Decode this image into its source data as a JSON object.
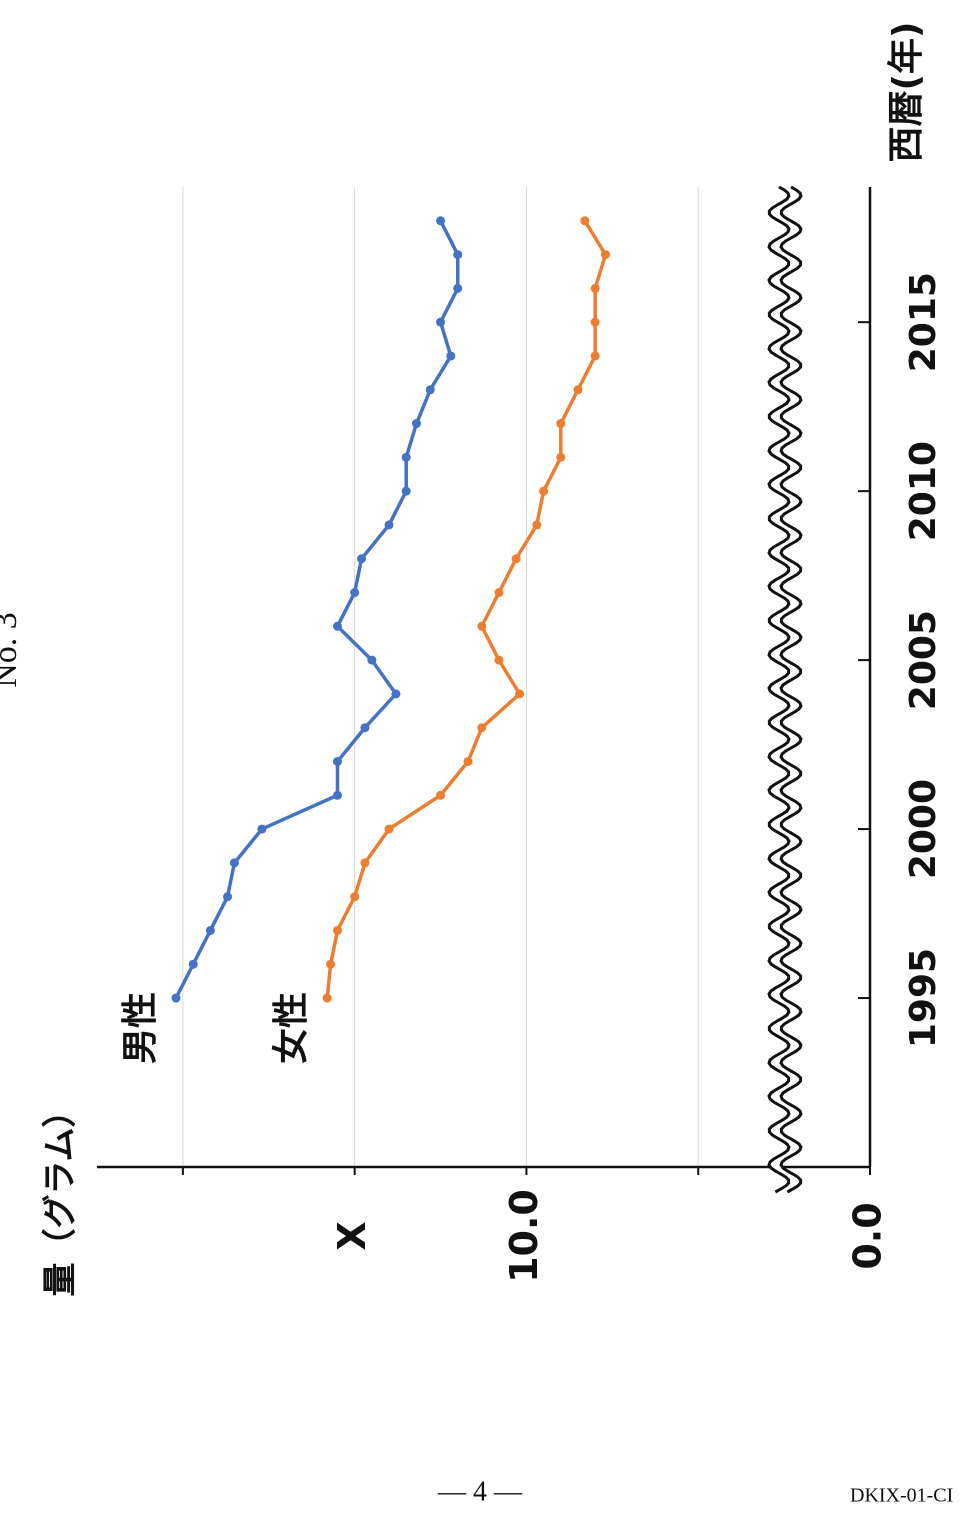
{
  "header": "No. 3",
  "footer": {
    "page_number": "— 4 —",
    "doc_code": "DKIX-01-CI"
  },
  "chart_data": {
    "type": "line",
    "y_label": "量（グラム）",
    "x_label": "西暦(年)",
    "x": [
      1995,
      1996,
      1997,
      1998,
      1999,
      2000,
      2001,
      2002,
      2003,
      2004,
      2005,
      2006,
      2007,
      2008,
      2009,
      2010,
      2011,
      2012,
      2013,
      2014,
      2015,
      2016,
      2017,
      2018
    ],
    "series": [
      {
        "name": "男性",
        "color": "#4472c4",
        "values": [
          20.2,
          19.7,
          19.2,
          18.7,
          18.5,
          17.7,
          15.5,
          15.5,
          14.7,
          13.8,
          14.5,
          15.5,
          15.0,
          14.8,
          14.0,
          13.5,
          13.5,
          13.2,
          12.8,
          12.2,
          12.5,
          12.0,
          12.0,
          12.5
        ]
      },
      {
        "name": "女性",
        "color": "#ed7d31",
        "values": [
          15.8,
          15.7,
          15.5,
          15.0,
          14.7,
          14.0,
          12.5,
          11.7,
          11.3,
          10.2,
          10.8,
          11.3,
          10.8,
          10.3,
          9.7,
          9.5,
          9.0,
          9.0,
          8.5,
          8.0,
          8.0,
          8.0,
          7.7,
          8.3
        ]
      }
    ],
    "xlim": [
      1990,
      2019
    ],
    "xticks": [
      1995,
      2000,
      2005,
      2010,
      2015
    ],
    "ylim": [
      0,
      22.5
    ],
    "yticks": [
      {
        "value": 0,
        "label": "0.0"
      },
      {
        "value": 10,
        "label": "10.0"
      },
      {
        "value": 15,
        "label": "X"
      }
    ],
    "minor_yticks": [
      5,
      20
    ],
    "grid": true
  }
}
